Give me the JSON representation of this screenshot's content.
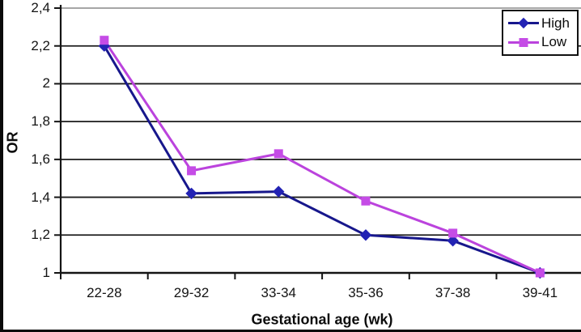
{
  "chart_data": {
    "type": "line",
    "title": "",
    "xlabel": "Gestational age (wk)",
    "ylabel": "OR",
    "categories": [
      "22-28",
      "29-32",
      "33-34",
      "35-36",
      "37-38",
      "39-41"
    ],
    "series": [
      {
        "name": "High",
        "values": [
          2.2,
          1.42,
          1.43,
          1.2,
          1.17,
          1.0
        ],
        "color": "#17178c",
        "marker_color": "#2323b4",
        "marker": "diamond"
      },
      {
        "name": "Low",
        "values": [
          2.23,
          1.54,
          1.63,
          1.38,
          1.21,
          1.0
        ],
        "color": "#bb43dd",
        "marker_color": "#c54ce6",
        "marker": "square"
      }
    ],
    "ylim": [
      1,
      2.4
    ],
    "ytick_step": 0.2,
    "ytick_labels": [
      "1",
      "1,2",
      "1,4",
      "1,6",
      "1,8",
      "2",
      "2,2",
      "2,4"
    ],
    "grid": true,
    "grid_color": "#1c1c1c",
    "grid_color_top": "#9a9a9a",
    "axis_color": "#141414",
    "legend_position": "top-right"
  },
  "legend": {
    "items": [
      {
        "label": "High"
      },
      {
        "label": "Low"
      }
    ]
  }
}
